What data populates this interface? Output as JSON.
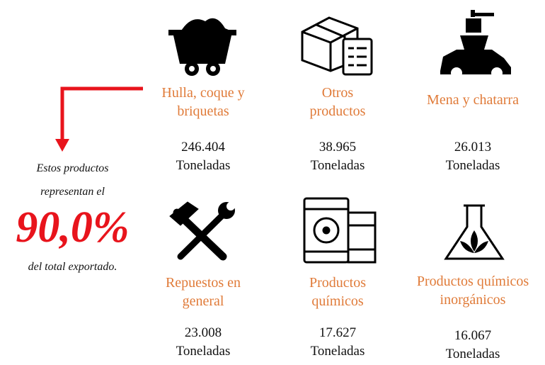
{
  "callout": {
    "line1": "Estos productos",
    "line2": "representan el",
    "percent": "90,0%",
    "line3": "del total exportado."
  },
  "items": [
    {
      "name": "Hulla, coque y briquetas",
      "amount": "246.404",
      "unit": "Toneladas"
    },
    {
      "name": "Otros productos",
      "amount": "38.965",
      "unit": "Toneladas"
    },
    {
      "name": "Mena y chatarra",
      "amount": "26.013",
      "unit": "Toneladas"
    },
    {
      "name": "Repuestos en general",
      "amount": "23.008",
      "unit": "Toneladas"
    },
    {
      "name": "Productos químicos",
      "amount": "17.627",
      "unit": "Toneladas"
    },
    {
      "name": "Productos químicos inorgánicos",
      "amount": "16.067",
      "unit": "Toneladas"
    }
  ]
}
